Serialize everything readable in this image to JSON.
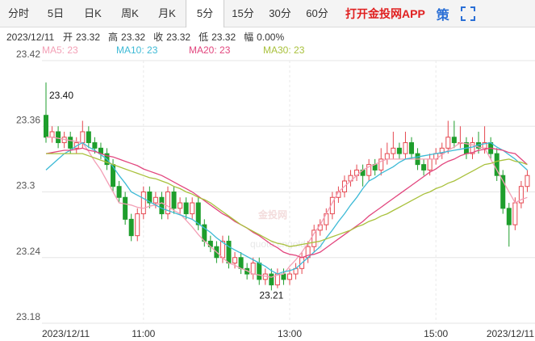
{
  "toolbar": {
    "tabs": [
      "分时",
      "5日",
      "日K",
      "周K",
      "月K",
      "5分",
      "15分",
      "30分",
      "60分"
    ],
    "active_tab": "5分",
    "app_link": "打开金投网APP",
    "strategy": "策"
  },
  "info": {
    "date": "2023/12/11",
    "items": [
      {
        "label": "开",
        "value": 23.32
      },
      {
        "label": "高",
        "value": 23.32
      },
      {
        "label": "收",
        "value": 23.32
      },
      {
        "label": "低",
        "value": 23.32
      },
      {
        "label": "幅",
        "value": "0.00%"
      }
    ]
  },
  "watermark": {
    "brand": "金投网",
    "url": "quote.cngold.org"
  },
  "chart_data": {
    "type": "candlestick",
    "up_color": "#e5474f",
    "down_color": "#1e9e2c",
    "grid": true,
    "ylim": [
      23.18,
      23.42
    ],
    "yticks": [
      23.42,
      23.36,
      23.3,
      23.24,
      23.18
    ],
    "xticks": [
      {
        "value": 0,
        "label": "2023/12/11"
      },
      {
        "value": 16,
        "label": "11:00"
      },
      {
        "value": 40,
        "label": "13:00"
      },
      {
        "value": 64,
        "label": "15:00"
      },
      {
        "value": 79,
        "label": "2023/12/11"
      }
    ],
    "annotations": [
      {
        "label": "23.40",
        "value": 23.4
      },
      {
        "label": "23.21",
        "value": 23.21
      }
    ],
    "ohlc": [
      [
        23.37,
        23.4,
        23.345,
        23.35
      ],
      [
        23.35,
        23.36,
        23.345,
        23.355
      ],
      [
        23.355,
        23.36,
        23.34,
        23.345
      ],
      [
        23.345,
        23.355,
        23.34,
        23.35
      ],
      [
        23.35,
        23.355,
        23.335,
        23.34
      ],
      [
        23.34,
        23.35,
        23.335,
        23.345
      ],
      [
        23.345,
        23.365,
        23.34,
        23.355
      ],
      [
        23.355,
        23.36,
        23.34,
        23.345
      ],
      [
        23.345,
        23.35,
        23.335,
        23.34
      ],
      [
        23.34,
        23.345,
        23.33,
        23.335
      ],
      [
        23.335,
        23.34,
        23.32,
        23.325
      ],
      [
        23.325,
        23.33,
        23.3,
        23.305
      ],
      [
        23.305,
        23.31,
        23.29,
        23.295
      ],
      [
        23.295,
        23.3,
        23.27,
        23.275
      ],
      [
        23.275,
        23.28,
        23.255,
        23.26
      ],
      [
        23.26,
        23.285,
        23.255,
        23.28
      ],
      [
        23.28,
        23.305,
        23.275,
        23.3
      ],
      [
        23.3,
        23.305,
        23.285,
        23.29
      ],
      [
        23.29,
        23.3,
        23.285,
        23.295
      ],
      [
        23.295,
        23.3,
        23.275,
        23.28
      ],
      [
        23.28,
        23.305,
        23.275,
        23.3
      ],
      [
        23.3,
        23.305,
        23.28,
        23.285
      ],
      [
        23.285,
        23.295,
        23.28,
        23.29
      ],
      [
        23.29,
        23.295,
        23.275,
        23.28
      ],
      [
        23.28,
        23.295,
        23.275,
        23.29
      ],
      [
        23.29,
        23.295,
        23.265,
        23.27
      ],
      [
        23.27,
        23.275,
        23.25,
        23.255
      ],
      [
        23.255,
        23.26,
        23.245,
        23.25
      ],
      [
        23.25,
        23.255,
        23.235,
        23.24
      ],
      [
        23.24,
        23.26,
        23.235,
        23.255
      ],
      [
        23.255,
        23.26,
        23.23,
        23.235
      ],
      [
        23.235,
        23.245,
        23.23,
        23.24
      ],
      [
        23.24,
        23.245,
        23.225,
        23.23
      ],
      [
        23.23,
        23.235,
        23.22,
        23.225
      ],
      [
        23.225,
        23.24,
        23.22,
        23.235
      ],
      [
        23.235,
        23.24,
        23.215,
        23.22
      ],
      [
        23.22,
        23.23,
        23.215,
        23.225
      ],
      [
        23.225,
        23.23,
        23.21,
        23.215
      ],
      [
        23.215,
        23.23,
        23.212,
        23.225
      ],
      [
        23.225,
        23.23,
        23.215,
        23.22
      ],
      [
        23.22,
        23.23,
        23.215,
        23.225
      ],
      [
        23.225,
        23.235,
        23.22,
        23.23
      ],
      [
        23.23,
        23.245,
        23.225,
        23.24
      ],
      [
        23.24,
        23.255,
        23.235,
        23.25
      ],
      [
        23.25,
        23.27,
        23.245,
        23.265
      ],
      [
        23.265,
        23.275,
        23.26,
        23.27
      ],
      [
        23.27,
        23.285,
        23.265,
        23.28
      ],
      [
        23.28,
        23.3,
        23.275,
        23.295
      ],
      [
        23.295,
        23.305,
        23.29,
        23.3
      ],
      [
        23.3,
        23.315,
        23.295,
        23.31
      ],
      [
        23.31,
        23.32,
        23.305,
        23.315
      ],
      [
        23.315,
        23.325,
        23.31,
        23.32
      ],
      [
        23.32,
        23.325,
        23.305,
        23.315
      ],
      [
        23.315,
        23.33,
        23.31,
        23.325
      ],
      [
        23.325,
        23.33,
        23.315,
        23.32
      ],
      [
        23.32,
        23.34,
        23.315,
        23.33
      ],
      [
        23.33,
        23.345,
        23.325,
        23.335
      ],
      [
        23.335,
        23.355,
        23.33,
        23.34
      ],
      [
        23.34,
        23.345,
        23.33,
        23.335
      ],
      [
        23.335,
        23.355,
        23.33,
        23.345
      ],
      [
        23.345,
        23.35,
        23.33,
        23.335
      ],
      [
        23.335,
        23.34,
        23.32,
        23.325
      ],
      [
        23.325,
        23.33,
        23.315,
        23.32
      ],
      [
        23.32,
        23.335,
        23.315,
        23.33
      ],
      [
        23.33,
        23.34,
        23.325,
        23.335
      ],
      [
        23.335,
        23.345,
        23.33,
        23.34
      ],
      [
        23.34,
        23.365,
        23.335,
        23.35
      ],
      [
        23.35,
        23.365,
        23.34,
        23.345
      ],
      [
        23.345,
        23.36,
        23.34,
        23.345
      ],
      [
        23.345,
        23.35,
        23.33,
        23.335
      ],
      [
        23.335,
        23.35,
        23.33,
        23.345
      ],
      [
        23.345,
        23.355,
        23.335,
        23.34
      ],
      [
        23.34,
        23.36,
        23.335,
        23.345
      ],
      [
        23.345,
        23.35,
        23.33,
        23.335
      ],
      [
        23.335,
        23.34,
        23.31,
        23.315
      ],
      [
        23.315,
        23.32,
        23.28,
        23.285
      ],
      [
        23.285,
        23.29,
        23.25,
        23.27
      ],
      [
        23.27,
        23.295,
        23.265,
        23.29
      ],
      [
        23.29,
        23.31,
        23.285,
        23.305
      ],
      [
        23.305,
        23.32,
        23.3,
        23.315
      ]
    ],
    "series": [
      {
        "name": "MA5",
        "legend": "MA5: 23",
        "color": "#f3a0b6",
        "values": [
          23.35,
          23.35,
          23.349,
          23.348,
          23.347,
          23.346,
          23.345,
          23.337,
          23.328,
          23.32,
          23.31,
          23.3,
          23.29,
          23.289,
          23.288,
          23.286,
          23.285,
          23.287,
          23.288,
          23.29,
          23.287,
          23.283,
          23.28,
          23.274,
          23.268,
          23.261,
          23.255,
          23.25,
          23.245,
          23.24,
          23.235,
          23.233,
          23.23,
          23.228,
          23.225,
          23.224,
          23.223,
          23.222,
          23.224,
          23.225,
          23.232,
          23.238,
          23.245,
          23.253,
          23.262,
          23.27,
          23.28,
          23.29,
          23.3,
          23.305,
          23.31,
          23.315,
          23.32,
          23.323,
          23.325,
          23.328,
          23.33,
          23.33,
          23.33,
          23.33,
          23.33,
          23.33,
          23.33,
          23.33,
          23.33,
          23.334,
          23.338,
          23.341,
          23.345,
          23.344,
          23.343,
          23.341,
          23.34,
          23.33,
          23.32,
          23.31,
          23.3,
          23.29,
          23.293,
          23.295
        ]
      },
      {
        "name": "MA10",
        "legend": "MA10: 23",
        "color": "#3dbad6",
        "values": [
          23.32,
          23.325,
          23.33,
          23.335,
          23.338,
          23.342,
          23.345,
          23.341,
          23.338,
          23.334,
          23.33,
          23.323,
          23.315,
          23.308,
          23.3,
          23.297,
          23.294,
          23.291,
          23.288,
          23.285,
          23.283,
          23.281,
          23.279,
          23.277,
          23.275,
          23.271,
          23.267,
          23.263,
          23.258,
          23.254,
          23.25,
          23.247,
          23.244,
          23.241,
          23.238,
          23.235,
          23.232,
          23.228,
          23.225,
          23.227,
          23.228,
          23.23,
          23.235,
          23.24,
          23.245,
          23.25,
          23.258,
          23.265,
          23.273,
          23.28,
          23.288,
          23.295,
          23.303,
          23.31,
          23.313,
          23.317,
          23.32,
          23.323,
          23.327,
          23.33,
          23.331,
          23.332,
          23.333,
          23.334,
          23.335,
          23.336,
          23.337,
          23.338,
          23.339,
          23.34,
          23.341,
          23.343,
          23.344,
          23.345,
          23.341,
          23.338,
          23.334,
          23.33,
          23.325,
          23.32
        ]
      },
      {
        "name": "MA20",
        "legend": "MA20: 23",
        "color": "#e2467e",
        "values": [
          23.335,
          23.336,
          23.337,
          23.338,
          23.338,
          23.339,
          23.34,
          23.338,
          23.337,
          23.335,
          23.333,
          23.332,
          23.33,
          23.328,
          23.326,
          23.324,
          23.321,
          23.319,
          23.317,
          23.315,
          23.312,
          23.309,
          23.306,
          23.303,
          23.3,
          23.296,
          23.292,
          23.288,
          23.284,
          23.28,
          23.277,
          23.273,
          23.27,
          23.267,
          23.263,
          23.26,
          23.256,
          23.252,
          23.249,
          23.245,
          23.243,
          23.242,
          23.24,
          23.242,
          23.243,
          23.245,
          23.249,
          23.253,
          23.257,
          23.261,
          23.265,
          23.269,
          23.273,
          23.278,
          23.282,
          23.286,
          23.29,
          23.294,
          23.298,
          23.302,
          23.306,
          23.31,
          23.314,
          23.318,
          23.321,
          23.325,
          23.328,
          23.33,
          23.333,
          23.335,
          23.336,
          23.338,
          23.339,
          23.34,
          23.339,
          23.338,
          23.336,
          23.335,
          23.33,
          23.325
        ]
      },
      {
        "name": "MA30",
        "legend": "MA30: 23",
        "color": "#a9c13c",
        "values": [
          23.335,
          23.335,
          23.335,
          23.335,
          23.335,
          23.335,
          23.335,
          23.333,
          23.331,
          23.329,
          23.327,
          23.325,
          23.323,
          23.321,
          23.319,
          23.317,
          23.315,
          23.313,
          23.312,
          23.31,
          23.308,
          23.305,
          23.303,
          23.3,
          23.298,
          23.295,
          23.293,
          23.29,
          23.286,
          23.282,
          23.278,
          23.274,
          23.27,
          23.267,
          23.264,
          23.261,
          23.258,
          23.255,
          23.253,
          23.252,
          23.25,
          23.251,
          23.252,
          23.253,
          23.254,
          23.255,
          23.257,
          23.259,
          23.261,
          23.263,
          23.265,
          23.268,
          23.27,
          23.273,
          23.275,
          23.278,
          23.28,
          23.283,
          23.286,
          23.289,
          23.292,
          23.295,
          23.298,
          23.3,
          23.303,
          23.305,
          23.308,
          23.31,
          23.313,
          23.316,
          23.319,
          23.322,
          23.325,
          23.326,
          23.328,
          23.329,
          23.33,
          23.328,
          23.327,
          23.325
        ]
      }
    ]
  }
}
